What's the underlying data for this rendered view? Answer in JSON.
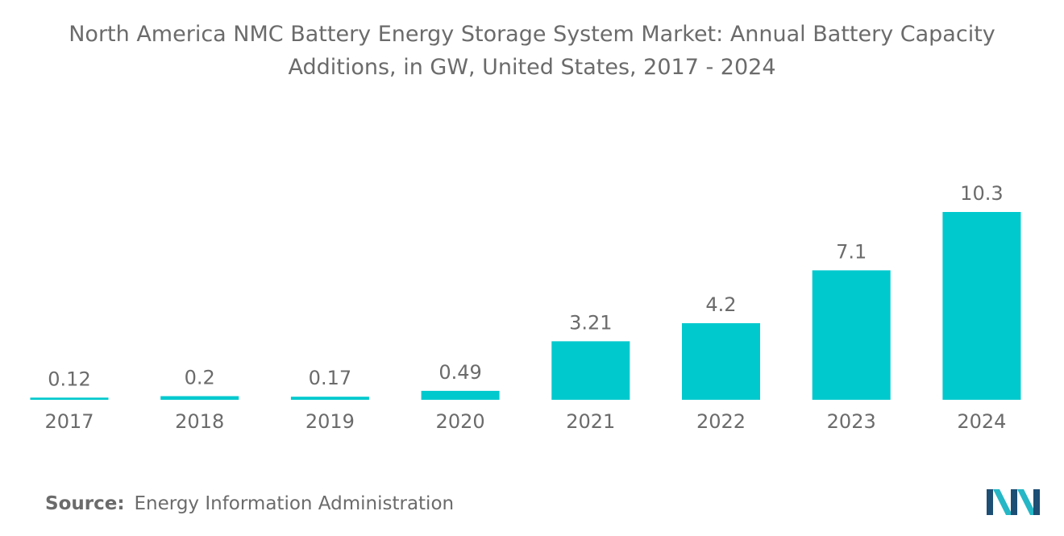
{
  "chart_data": {
    "type": "bar",
    "title": "North America NMC Battery Energy Storage System Market: Annual Battery Capacity Additions, in GW, United States, 2017 - 2024",
    "categories": [
      "2017",
      "2018",
      "2019",
      "2020",
      "2021",
      "2022",
      "2023",
      "2024"
    ],
    "values": [
      0.12,
      0.2,
      0.17,
      0.49,
      3.21,
      4.2,
      7.1,
      10.3
    ],
    "value_labels": [
      "0.12",
      "0.2",
      "0.17",
      "0.49",
      "3.21",
      "4.2",
      "7.1",
      "10.3"
    ],
    "xlabel": "",
    "ylabel": "",
    "ylim": [
      0,
      10.3
    ],
    "grid": false,
    "bar_color": "#00c9ce"
  },
  "title_lines": [
    "North America NMC Battery Energy Storage System Market: Annual Battery Capacity",
    "Additions, in GW, United States, 2017 - 2024"
  ],
  "source": {
    "label": "Source:",
    "text": "Energy Information Administration"
  },
  "colors": {
    "text": "#6b6b6b",
    "logo_dark": "#1d4e74",
    "logo_light": "#25b7c6"
  },
  "logo": {
    "icon": "mordor-logo-icon"
  }
}
